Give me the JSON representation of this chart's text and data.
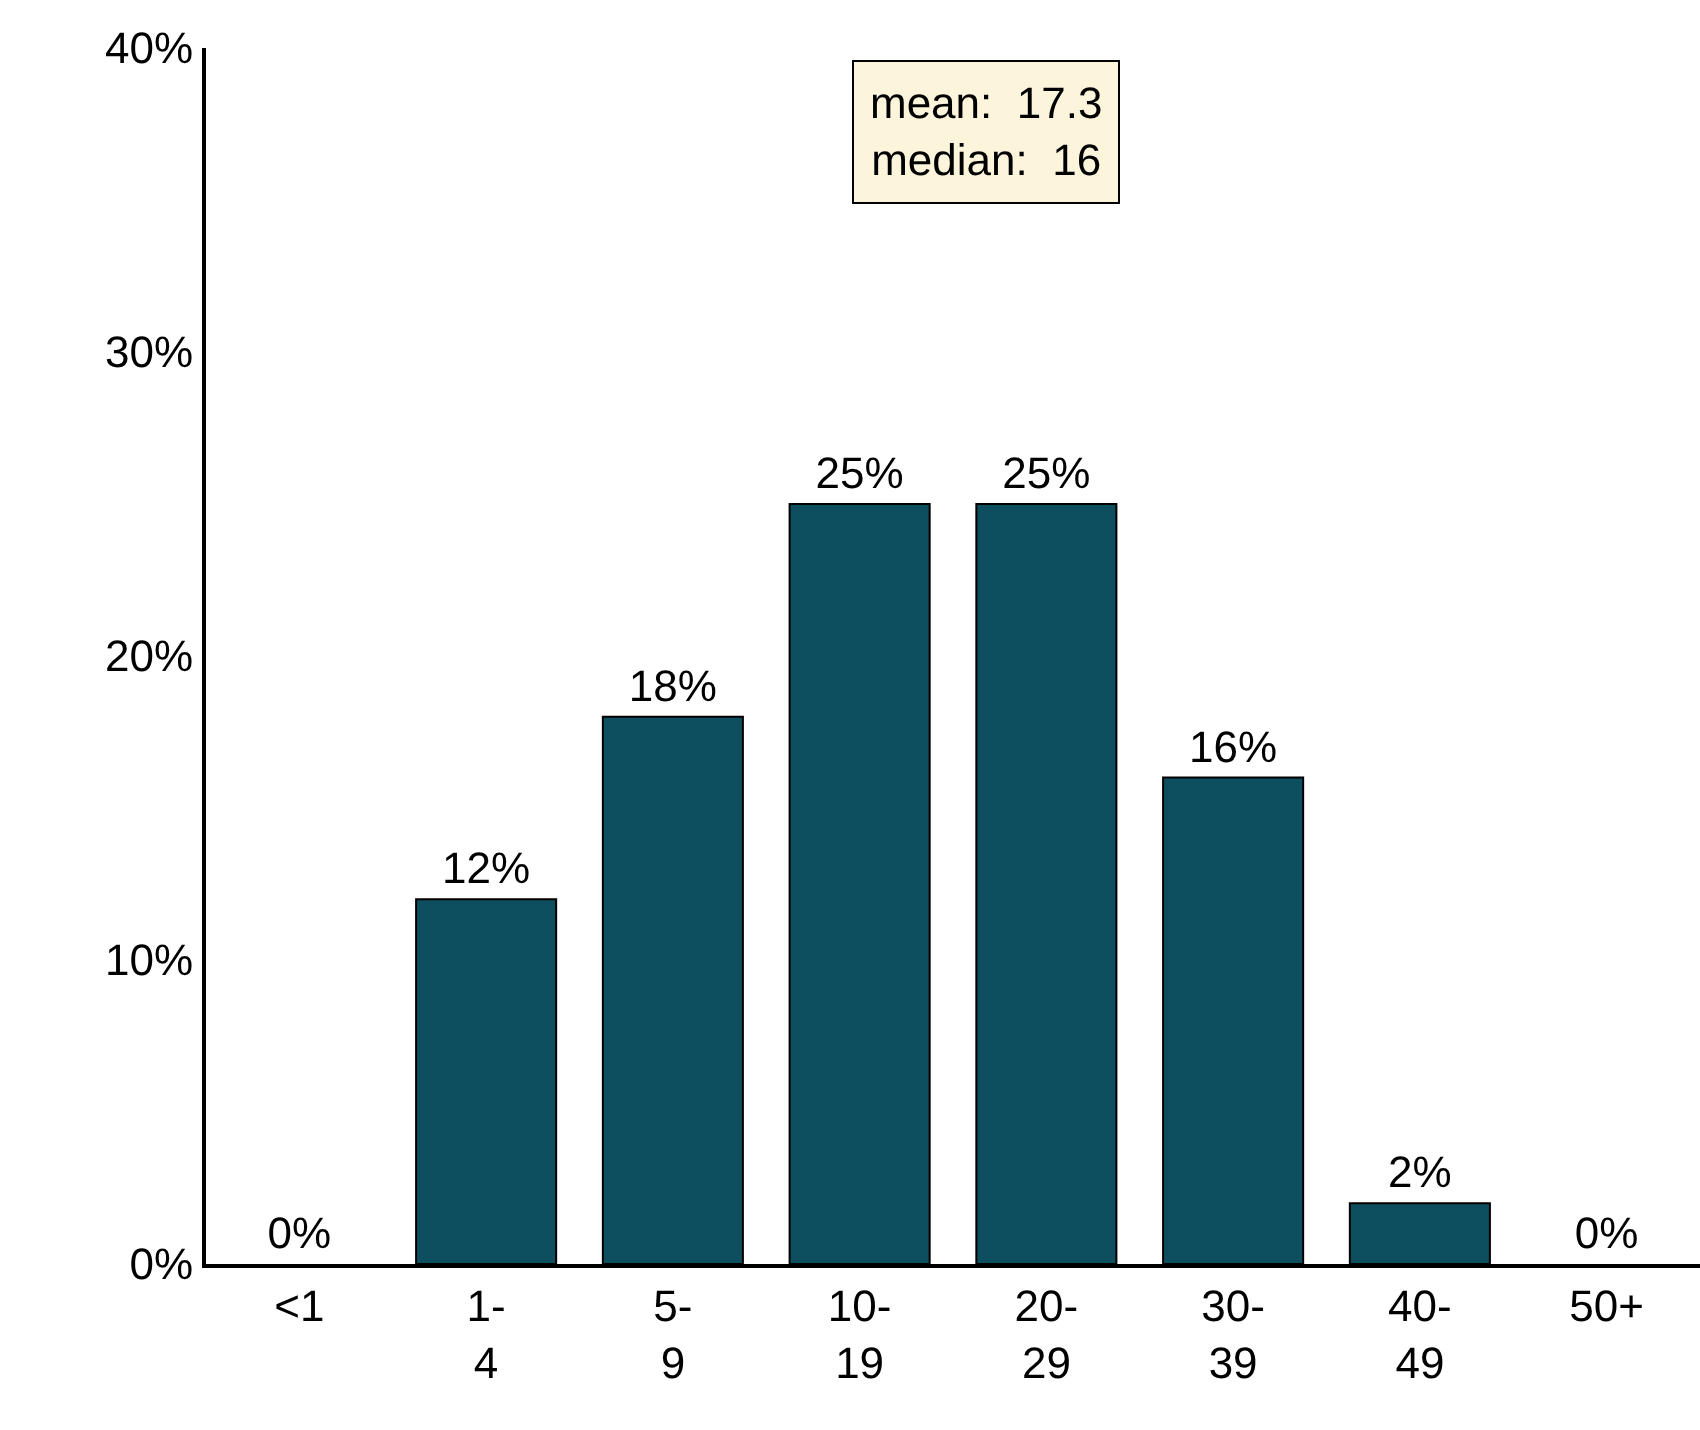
{
  "chart_data": {
    "type": "bar",
    "categories": [
      "<1",
      "1-4",
      "5-9",
      "10-19",
      "20-29",
      "30-39",
      "40-49",
      "50+"
    ],
    "values": [
      0,
      12,
      18,
      25,
      25,
      16,
      2,
      0
    ],
    "value_labels": [
      "0%",
      "12%",
      "18%",
      "25%",
      "25%",
      "16%",
      "2%",
      "0%"
    ],
    "color": "#0d4f5f",
    "ylim": [
      0,
      40
    ],
    "yticks": [
      {
        "value": 0,
        "label": "0%"
      },
      {
        "value": 10,
        "label": "10%"
      },
      {
        "value": 20,
        "label": "20%"
      },
      {
        "value": 30,
        "label": "30%"
      },
      {
        "value": 40,
        "label": "40%"
      }
    ],
    "grid": false,
    "annotations": [
      "mean:  17.3\nmedian:  16"
    ]
  }
}
